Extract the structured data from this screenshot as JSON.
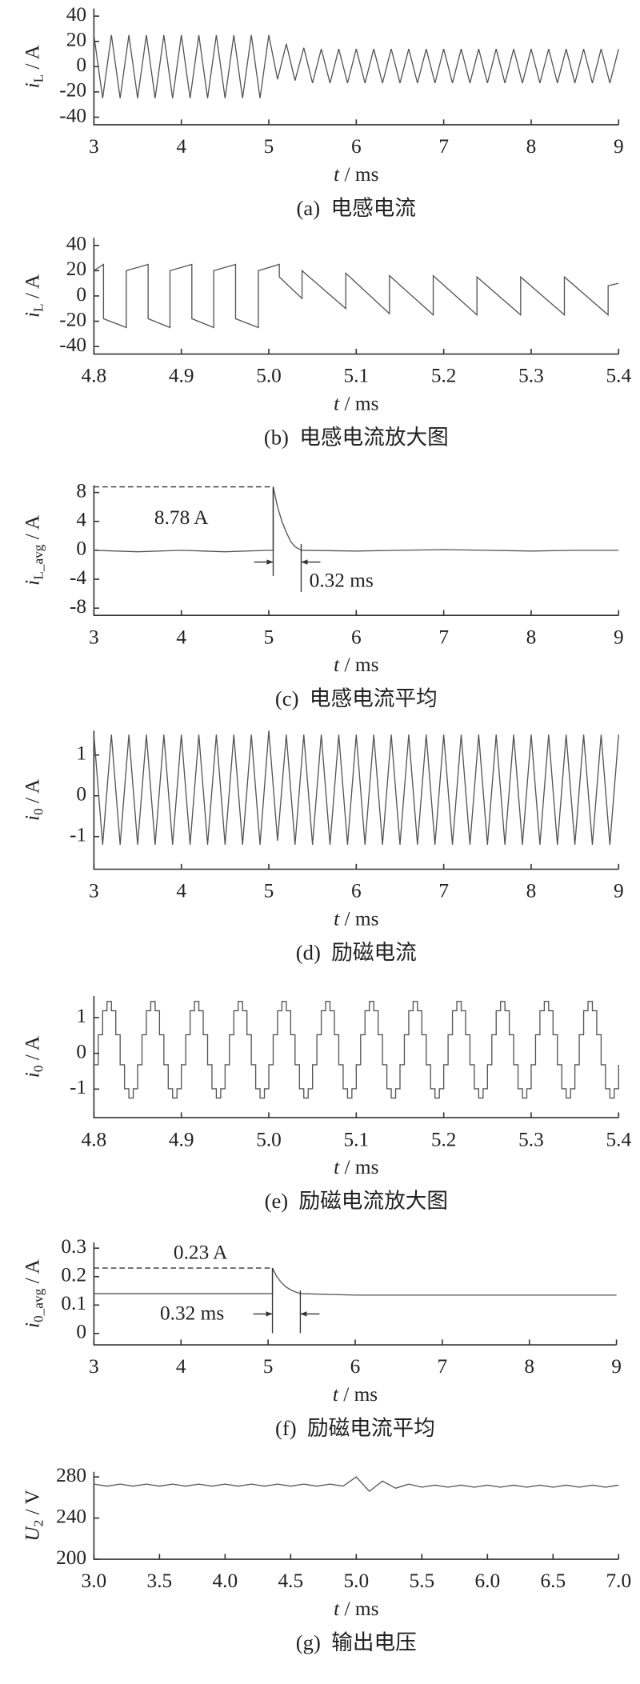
{
  "chart_data": [
    {
      "type": "line",
      "color": "#555555",
      "ylabel_symbol": "i",
      "ylabel_sub": "L",
      "ylabel_unit": " / A",
      "xlabel_symbol": "t",
      "xlabel_unit": " / ms",
      "caption": "(a)  电感电流",
      "xlim": [
        3,
        9
      ],
      "xticks": [
        3,
        4,
        5,
        6,
        7,
        8,
        9
      ],
      "ylim": [
        -46,
        46
      ],
      "yticks": [
        40,
        20,
        0,
        -20,
        -40
      ],
      "x": [
        3,
        3.1,
        3.2,
        3.3,
        3.4,
        3.5,
        3.6,
        3.7,
        3.8,
        3.9,
        4,
        4.1,
        4.2,
        4.3,
        4.4,
        4.5,
        4.6,
        4.7,
        4.8,
        4.9,
        5,
        5.1,
        5.2,
        5.3,
        5.4,
        5.5,
        5.6,
        5.7,
        5.8,
        5.9,
        6,
        6.1,
        6.2,
        6.3,
        6.4,
        6.5,
        6.6,
        6.7,
        6.8,
        6.9,
        7,
        7.1,
        7.2,
        7.3,
        7.4,
        7.5,
        7.6,
        7.7,
        7.8,
        7.9,
        8,
        8.1,
        8.2,
        8.3,
        8.4,
        8.5,
        8.6,
        8.7,
        8.8,
        8.9,
        9
      ],
      "values": [
        25,
        -25,
        25,
        -25,
        25,
        -25,
        25,
        -25,
        25,
        -25,
        25,
        -25,
        25,
        -25,
        25,
        -25,
        25,
        -25,
        25,
        -25,
        25,
        -10,
        18,
        -11,
        15,
        -13,
        14,
        -13,
        14,
        -13,
        14,
        -13,
        14,
        -13,
        14,
        -13,
        14,
        -13,
        14,
        -13,
        14,
        -13,
        14,
        -13,
        14,
        -13,
        14,
        -13,
        14,
        -13,
        14,
        -13,
        14,
        -13,
        14,
        -13,
        14,
        -13,
        14,
        -13,
        14
      ]
    },
    {
      "type": "line",
      "color": "#555555",
      "ylabel_symbol": "i",
      "ylabel_sub": "L",
      "ylabel_unit": " / A",
      "xlabel_symbol": "t",
      "xlabel_unit": " / ms",
      "caption": "(b)  电感电流放大图",
      "xlim": [
        4.8,
        5.4
      ],
      "xticks": [
        4.8,
        4.9,
        {
          "value": 5,
          "label": "5.0"
        },
        5.1,
        5.2,
        5.3,
        5.4
      ],
      "ylim": [
        -46,
        46
      ],
      "yticks": [
        40,
        20,
        0,
        -20,
        -40
      ],
      "x": [
        4.8,
        4.811,
        4.811,
        4.837,
        4.837,
        4.862,
        4.862,
        4.887,
        4.887,
        4.912,
        4.912,
        4.937,
        4.937,
        4.962,
        4.962,
        4.988,
        4.988,
        5.012,
        5.012,
        5.038,
        5.038,
        5.088,
        5.088,
        5.138,
        5.138,
        5.188,
        5.188,
        5.238,
        5.238,
        5.288,
        5.288,
        5.338,
        5.338,
        5.388,
        5.388,
        5.4
      ],
      "values": [
        20,
        25,
        -18,
        -25,
        20,
        25,
        -18,
        -25,
        20,
        25,
        -18,
        -25,
        20,
        25,
        -18,
        -25,
        20,
        25,
        15,
        -2,
        20,
        -10,
        18,
        -14,
        16,
        -15,
        16,
        -15,
        15,
        -15,
        15,
        -15,
        15,
        -15,
        8,
        10
      ]
    },
    {
      "type": "line",
      "color": "#555555",
      "ylabel_symbol": "i",
      "ylabel_sub": "L_avg",
      "ylabel_unit": " / A",
      "xlabel_symbol": "t",
      "xlabel_unit": " / ms",
      "caption": "(c)  电感电流平均",
      "xlim": [
        3,
        9
      ],
      "xticks": [
        3,
        4,
        5,
        6,
        7,
        8,
        9
      ],
      "ylim": [
        -9,
        9
      ],
      "yticks": [
        8,
        4,
        0,
        -4,
        -8
      ],
      "x": [
        3,
        3.5,
        4,
        4.5,
        5,
        5.05,
        5.05,
        5.1,
        5.15,
        5.2,
        5.25,
        5.3,
        5.37,
        6,
        6.5,
        7,
        7.5,
        8,
        8.5,
        9
      ],
      "values": [
        0,
        -0.2,
        0,
        -0.2,
        0,
        0,
        8.78,
        6,
        4,
        2.5,
        1.2,
        0.5,
        0,
        -0.1,
        0,
        0.1,
        0,
        -0.1,
        0,
        0
      ],
      "reference_lines": {
        "x": [
          5.05,
          5.37
        ],
        "y": 8.78
      },
      "annotations": [
        "8.78 A",
        "0.32 ms"
      ]
    },
    {
      "type": "line",
      "color": "#555555",
      "ylabel_symbol": "i",
      "ylabel_sub": "0",
      "ylabel_unit": " / A",
      "xlabel_symbol": "t",
      "xlabel_unit": " / ms",
      "caption": "(d)  励磁电流",
      "xlim": [
        3,
        9
      ],
      "xticks": [
        3,
        4,
        5,
        6,
        7,
        8,
        9
      ],
      "ylim": [
        -1.8,
        1.6
      ],
      "yticks": [
        1,
        0,
        -1
      ],
      "x": [
        3,
        3.1,
        3.2,
        3.3,
        3.4,
        3.5,
        3.6,
        3.7,
        3.8,
        3.9,
        4,
        4.1,
        4.2,
        4.3,
        4.4,
        4.5,
        4.6,
        4.7,
        4.8,
        4.9,
        5,
        5.1,
        5.2,
        5.3,
        5.4,
        5.5,
        5.6,
        5.7,
        5.8,
        5.9,
        6,
        6.1,
        6.2,
        6.3,
        6.4,
        6.5,
        6.6,
        6.7,
        6.8,
        6.9,
        7,
        7.1,
        7.2,
        7.3,
        7.4,
        7.5,
        7.6,
        7.7,
        7.8,
        7.9,
        8,
        8.1,
        8.2,
        8.3,
        8.4,
        8.5,
        8.6,
        8.7,
        8.8,
        8.9,
        9
      ],
      "values": [
        1.5,
        -1.2,
        1.5,
        -1.2,
        1.5,
        -1.2,
        1.5,
        -1.2,
        1.5,
        -1.2,
        1.5,
        -1.2,
        1.5,
        -1.2,
        1.5,
        -1.2,
        1.5,
        -1.2,
        1.5,
        -1.2,
        1.6,
        -1.1,
        1.5,
        -1.2,
        1.5,
        -1.2,
        1.5,
        -1.2,
        1.5,
        -1.2,
        1.5,
        -1.2,
        1.5,
        -1.2,
        1.5,
        -1.2,
        1.5,
        -1.2,
        1.5,
        -1.2,
        1.5,
        -1.2,
        1.5,
        -1.2,
        1.5,
        -1.2,
        1.5,
        -1.2,
        1.5,
        -1.2,
        1.5,
        -1.2,
        1.5,
        -1.2,
        1.5,
        -1.2,
        1.5,
        -1.2,
        1.5,
        -1.2,
        1.5
      ]
    },
    {
      "type": "line",
      "color": "#555555",
      "step": true,
      "ylabel_symbol": "i",
      "ylabel_sub": "0",
      "ylabel_unit": " / A",
      "xlabel_symbol": "t",
      "xlabel_unit": " / ms",
      "caption": "(e)  励磁电流放大图",
      "xlim": [
        4.8,
        5.4
      ],
      "xticks": [
        4.8,
        4.9,
        {
          "value": 5,
          "label": "5.0"
        },
        5.1,
        5.2,
        5.3,
        5.4
      ],
      "ylim": [
        -1.8,
        1.6
      ],
      "yticks": [
        1,
        0,
        -1
      ],
      "x": [
        4.8,
        4.805,
        4.81,
        4.815,
        4.82,
        4.825,
        4.83,
        4.835,
        4.84,
        4.845,
        4.85,
        4.855,
        4.86,
        4.865,
        4.87,
        4.875,
        4.88,
        4.885,
        4.89,
        4.895,
        4.9,
        4.905,
        4.91,
        4.915,
        4.92,
        4.925,
        4.93,
        4.935,
        4.94,
        4.945,
        4.95,
        4.955,
        4.96,
        4.965,
        4.97,
        4.975,
        4.98,
        4.985,
        4.99,
        4.995,
        5,
        5.005,
        5.01,
        5.015,
        5.02,
        5.025,
        5.03,
        5.035,
        5.04,
        5.045,
        5.05,
        5.055,
        5.06,
        5.065,
        5.07,
        5.075,
        5.08,
        5.085,
        5.09,
        5.095,
        5.1,
        5.105,
        5.11,
        5.115,
        5.12,
        5.125,
        5.13,
        5.135,
        5.14,
        5.145,
        5.15,
        5.155,
        5.16,
        5.165,
        5.17,
        5.175,
        5.18,
        5.185,
        5.19,
        5.195,
        5.2,
        5.205,
        5.21,
        5.215,
        5.22,
        5.225,
        5.23,
        5.235,
        5.24,
        5.245,
        5.25,
        5.255,
        5.26,
        5.265,
        5.27,
        5.275,
        5.28,
        5.285,
        5.29,
        5.295,
        5.3,
        5.305,
        5.31,
        5.315,
        5.32,
        5.325,
        5.33,
        5.335,
        5.34,
        5.345,
        5.35,
        5.355,
        5.36,
        5.365,
        5.37,
        5.375,
        5.38,
        5.385,
        5.39,
        5.395,
        5.4
      ],
      "values": [
        -0.32,
        0.52,
        1.19,
        1.45,
        1.19,
        0.52,
        -0.32,
        -0.99,
        -1.25,
        -0.99,
        -0.32,
        0.52,
        1.19,
        1.45,
        1.19,
        0.52,
        -0.32,
        -0.99,
        -1.25,
        -0.99,
        -0.32,
        0.52,
        1.19,
        1.45,
        1.19,
        0.52,
        -0.32,
        -0.99,
        -1.25,
        -0.99,
        -0.32,
        0.52,
        1.19,
        1.45,
        1.19,
        0.52,
        -0.32,
        -0.99,
        -1.25,
        -0.99,
        -0.32,
        0.52,
        1.19,
        1.45,
        1.19,
        0.52,
        -0.32,
        -0.99,
        -1.25,
        -0.99,
        -0.32,
        0.52,
        1.19,
        1.45,
        1.19,
        0.52,
        -0.32,
        -0.99,
        -1.25,
        -0.99,
        -0.32,
        0.52,
        1.19,
        1.45,
        1.19,
        0.52,
        -0.32,
        -0.99,
        -1.25,
        -0.99,
        -0.32,
        0.52,
        1.19,
        1.45,
        1.19,
        0.52,
        -0.32,
        -0.99,
        -1.25,
        -0.99,
        -0.32,
        0.52,
        1.19,
        1.45,
        1.19,
        0.52,
        -0.32,
        -0.99,
        -1.25,
        -0.99,
        -0.32,
        0.52,
        1.19,
        1.45,
        1.19,
        0.52,
        -0.32,
        -0.99,
        -1.25,
        -0.99,
        -0.32,
        0.52,
        1.19,
        1.45,
        1.19,
        0.52,
        -0.32,
        -0.99,
        -1.25,
        -0.99,
        -0.32,
        0.52,
        1.19,
        1.45,
        1.19,
        0.52,
        -0.32,
        -0.99,
        -1.25,
        -0.99,
        -0.32
      ]
    },
    {
      "type": "line",
      "color": "#555555",
      "ylabel_symbol": "i",
      "ylabel_sub": "0_avg",
      "ylabel_unit": " / A",
      "xlabel_symbol": "t",
      "xlabel_unit": " / ms",
      "caption": "(f)  励磁电流平均",
      "xlim": [
        3,
        9
      ],
      "xticks": [
        3,
        4,
        5,
        6,
        7,
        8,
        9
      ],
      "ylim": [
        -0.04,
        0.32
      ],
      "yticks": [
        0.3,
        0.2,
        0.1,
        0
      ],
      "x": [
        3,
        3.5,
        4,
        4.5,
        5,
        5.05,
        5.05,
        5.1,
        5.15,
        5.2,
        5.25,
        5.3,
        5.37,
        6,
        6.5,
        7,
        7.5,
        8,
        8.5,
        9
      ],
      "values": [
        0.14,
        0.14,
        0.14,
        0.14,
        0.14,
        0.14,
        0.23,
        0.2,
        0.18,
        0.165,
        0.155,
        0.148,
        0.14,
        0.135,
        0.135,
        0.135,
        0.135,
        0.135,
        0.135,
        0.135
      ],
      "reference_lines": {
        "x": [
          5.05,
          5.37
        ],
        "y": 0.23
      },
      "annotations": [
        "0.23 A",
        "0.32 ms"
      ]
    },
    {
      "type": "line",
      "color": "#555555",
      "ylabel_symbol": "U",
      "ylabel_sub": "2",
      "ylabel_unit": " / V",
      "xlabel_symbol": "t",
      "xlabel_unit": " / ms",
      "caption": "(g)  输出电压",
      "xlim": [
        3,
        7
      ],
      "xticks": [
        {
          "value": 3,
          "label": "3.0"
        },
        3.5,
        {
          "value": 4,
          "label": "4.0"
        },
        4.5,
        {
          "value": 5,
          "label": "5.0"
        },
        5.5,
        {
          "value": 6,
          "label": "6.0"
        },
        6.5,
        {
          "value": 7,
          "label": "7.0"
        }
      ],
      "ylim": [
        200,
        285
      ],
      "yticks": [
        280,
        240,
        200
      ],
      "x": [
        3,
        3.1,
        3.2,
        3.3,
        3.4,
        3.5,
        3.6,
        3.7,
        3.8,
        3.9,
        4,
        4.1,
        4.2,
        4.3,
        4.4,
        4.5,
        4.6,
        4.7,
        4.8,
        4.9,
        5,
        5.1,
        5.2,
        5.3,
        5.4,
        5.5,
        5.6,
        5.7,
        5.8,
        5.9,
        6,
        6.1,
        6.2,
        6.3,
        6.4,
        6.5,
        6.6,
        6.7,
        6.8,
        6.9,
        7
      ],
      "values": [
        273,
        271,
        273,
        271,
        273,
        271,
        273,
        271,
        273,
        271,
        273,
        271,
        273,
        271,
        273,
        271,
        273,
        271,
        273,
        271,
        280,
        266,
        276,
        269,
        273,
        270,
        272,
        270,
        272,
        270,
        272,
        270,
        272,
        270,
        272,
        270,
        272,
        270,
        272,
        270,
        272
      ]
    }
  ]
}
